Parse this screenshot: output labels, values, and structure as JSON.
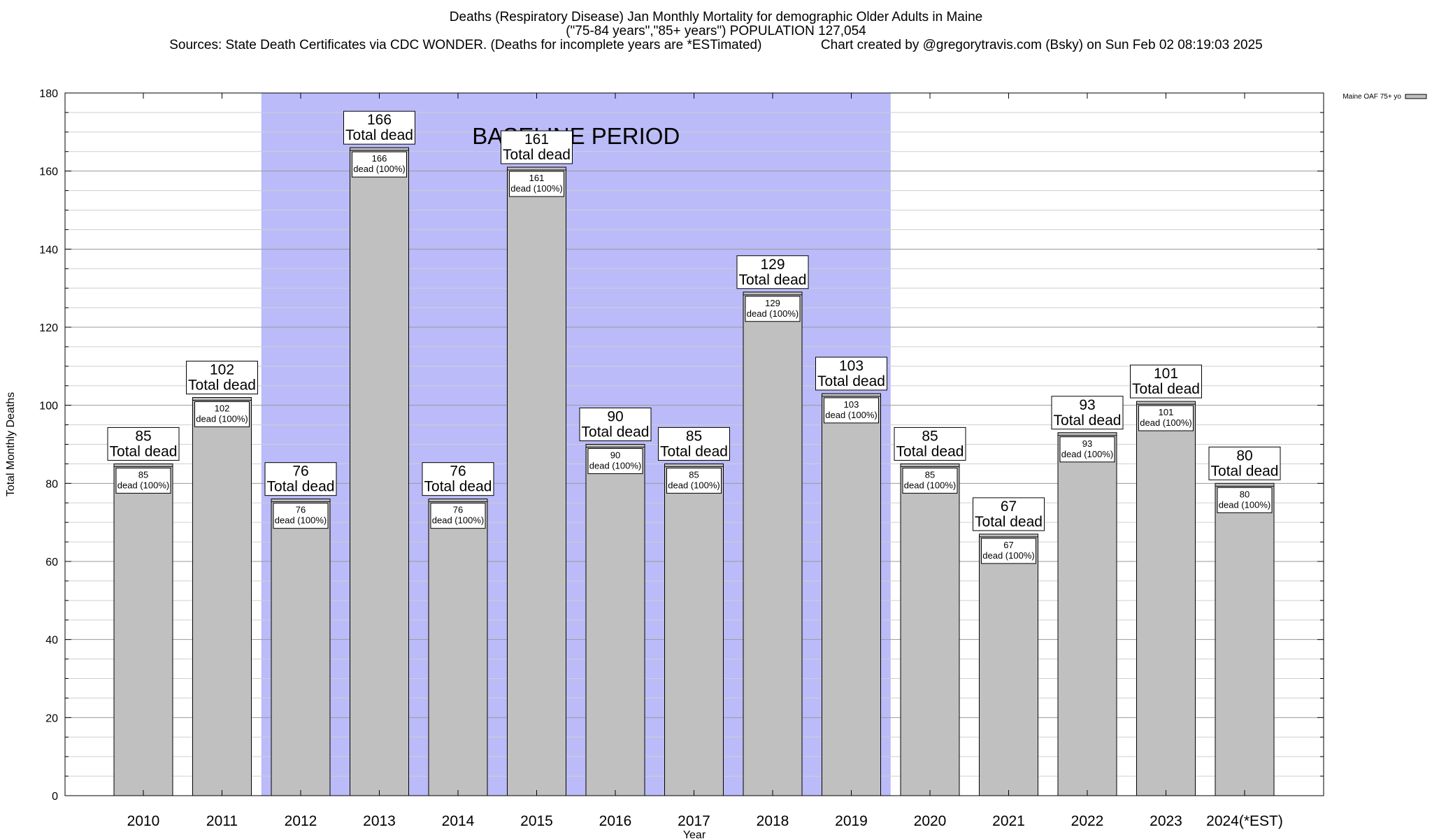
{
  "header": {
    "title_line1": "Deaths (Respiratory Disease) Jan Monthly Mortality for demographic Older Adults in Maine",
    "title_line2": "(\"75-84 years\",\"85+ years\") POPULATION 127,054",
    "title_line3": "Sources: State Death Certificates via CDC WONDER. (Deaths for incomplete years are *ESTimated)                Chart created by @gregorytravis.com (Bsky) on Sun Feb 02 08:19:03 2025"
  },
  "chart_data": {
    "type": "bar",
    "xlabel": "Year",
    "ylabel": "Total Monthly Deaths",
    "ylim": [
      0,
      180
    ],
    "ytick_major": [
      0,
      20,
      40,
      60,
      80,
      100,
      120,
      140,
      160,
      180
    ],
    "grid": "horizontal, minor every 5",
    "categories": [
      "2010",
      "2011",
      "2012",
      "2013",
      "2014",
      "2015",
      "2016",
      "2017",
      "2018",
      "2019",
      "2020",
      "2021",
      "2022",
      "2023",
      "2024(*EST)"
    ],
    "series": [
      {
        "name": "Maine OAF 75+ yo",
        "values": [
          85,
          102,
          76,
          166,
          76,
          161,
          90,
          85,
          129,
          103,
          85,
          67,
          93,
          101,
          80
        ],
        "color": "#c0c0c0"
      }
    ],
    "annotation_total_text": "Total dead",
    "annotation_inner_text": "dead (100%)",
    "baseline": {
      "label": "BASELINE PERIOD",
      "start": "2012",
      "end": "2019",
      "color": "#bbbbf9"
    },
    "legend_position": "top-right"
  }
}
